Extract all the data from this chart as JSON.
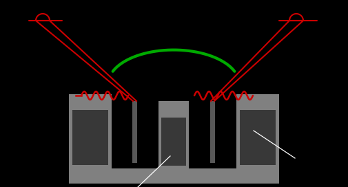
{
  "bg_color": "#000000",
  "gray_light": "#808080",
  "gray_dark": "#383838",
  "gray_mid": "#585858",
  "green_color": "#00aa00",
  "red_color": "#cc0000",
  "white_color": "#ffffff",
  "figsize": [
    5.05,
    2.72
  ],
  "dpi": 100
}
